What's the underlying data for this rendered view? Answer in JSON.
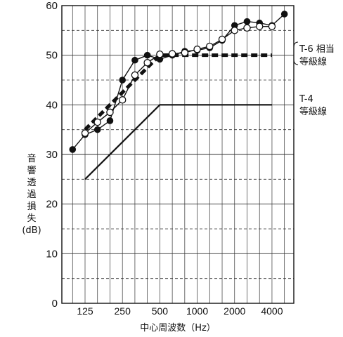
{
  "chart_data": {
    "type": "line",
    "xlabel": "中心周波数（Hz）",
    "ylabel": [
      "音",
      "響",
      "透",
      "過",
      "損",
      "失",
      "(dB)"
    ],
    "ylim": [
      0,
      60
    ],
    "y_ticks": [
      0,
      10,
      20,
      30,
      40,
      50,
      60
    ],
    "x_ticks": [
      "125",
      "250",
      "500",
      "1000",
      "2000",
      "4000"
    ],
    "x_points": [
      "100",
      "125",
      "160",
      "200",
      "250",
      "315",
      "400",
      "500",
      "630",
      "800",
      "1000",
      "1250",
      "1600",
      "2000",
      "2500",
      "3150",
      "4000",
      "5000"
    ],
    "grid": {
      "major_y": true,
      "minor_y_dashed": true,
      "vertical": true
    },
    "series": [
      {
        "marker": "filled-circle",
        "x": [
          "100",
          "125",
          "160",
          "200",
          "250",
          "315",
          "400",
          "500",
          "630",
          "800",
          "1000",
          "1250",
          "1600",
          "2000",
          "2500",
          "3150",
          "4000",
          "5000"
        ],
        "values": [
          31,
          34,
          35,
          36.8,
          45,
          49,
          50,
          49.2,
          50,
          50.8,
          51,
          51.5,
          53,
          56,
          56.8,
          56.5,
          56,
          58.3
        ]
      },
      {
        "marker": "open-circle",
        "x": [
          "125",
          "160",
          "200",
          "250",
          "315",
          "400",
          "500",
          "630",
          "800",
          "1000",
          "1250",
          "1600",
          "2000",
          "2500",
          "3150",
          "4000"
        ],
        "values": [
          34.3,
          36.5,
          38.5,
          41,
          46,
          48.5,
          50.2,
          50.3,
          50.5,
          51.2,
          51.8,
          53.2,
          55,
          55.5,
          55.8,
          55.8
        ]
      },
      {
        "name": "T-6 相当等級線",
        "style": "dashed-thick",
        "x": [
          "125",
          "500",
          "4000"
        ],
        "values": [
          35,
          50,
          50
        ]
      },
      {
        "name": "T-4 等級線",
        "style": "solid",
        "x": [
          "125",
          "500",
          "4000"
        ],
        "values": [
          25,
          40,
          40
        ]
      }
    ],
    "annotations": {
      "t6_line1": "T-6 相当",
      "t6_line2": "等級線",
      "t4_line1": "T-4",
      "t4_line2": "等級線"
    }
  }
}
